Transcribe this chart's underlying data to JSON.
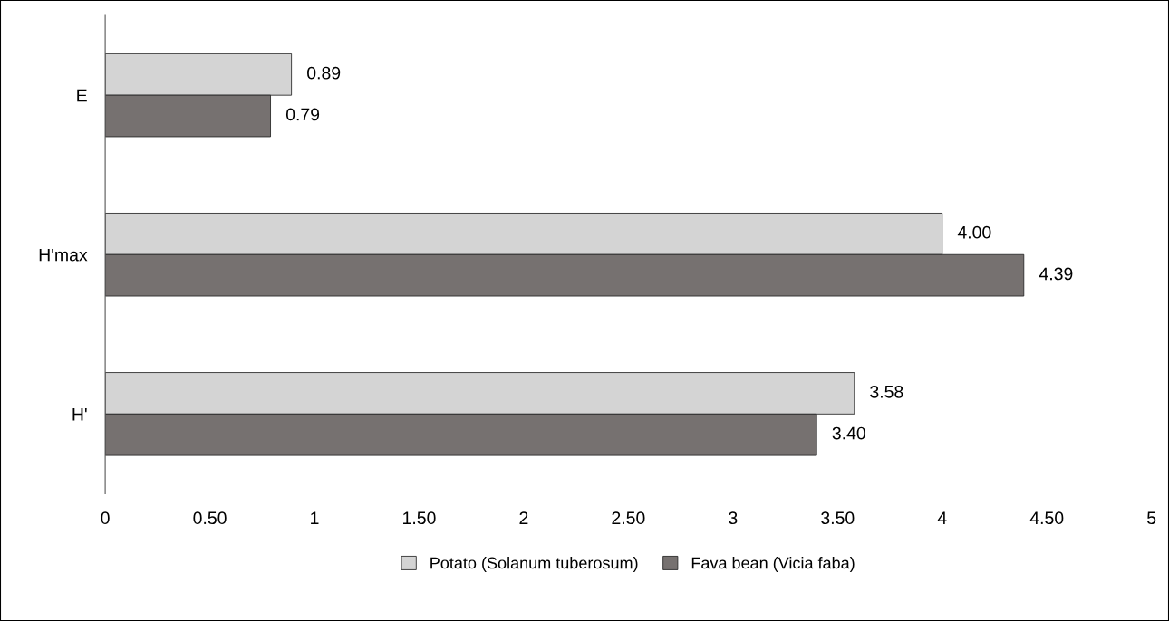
{
  "chart_data": {
    "type": "bar",
    "orientation": "horizontal",
    "categories": [
      "E",
      "H'max",
      "H'"
    ],
    "series": [
      {
        "name": "Potato (Solanum tuberosum)",
        "color": "#d4d4d4",
        "values": [
          0.89,
          4.0,
          3.58
        ],
        "value_labels": [
          "0.89",
          "4.00",
          "3.58"
        ]
      },
      {
        "name": "Fava bean (Vicia faba)",
        "color": "#767170",
        "values": [
          0.79,
          4.39,
          3.4
        ],
        "value_labels": [
          "0.79",
          "4.39",
          "3.40"
        ]
      }
    ],
    "xlim": [
      0,
      5
    ],
    "xticks": [
      0,
      {
        "value": 0.5,
        "label": "0.50"
      },
      1,
      {
        "value": 1.5,
        "label": "1.50"
      },
      2,
      {
        "value": 2.5,
        "label": "2.50"
      },
      3,
      {
        "value": 3.5,
        "label": "3.50"
      },
      4,
      {
        "value": 4.5,
        "label": "4.50"
      },
      5
    ],
    "grid": false,
    "legend": "bottom"
  }
}
